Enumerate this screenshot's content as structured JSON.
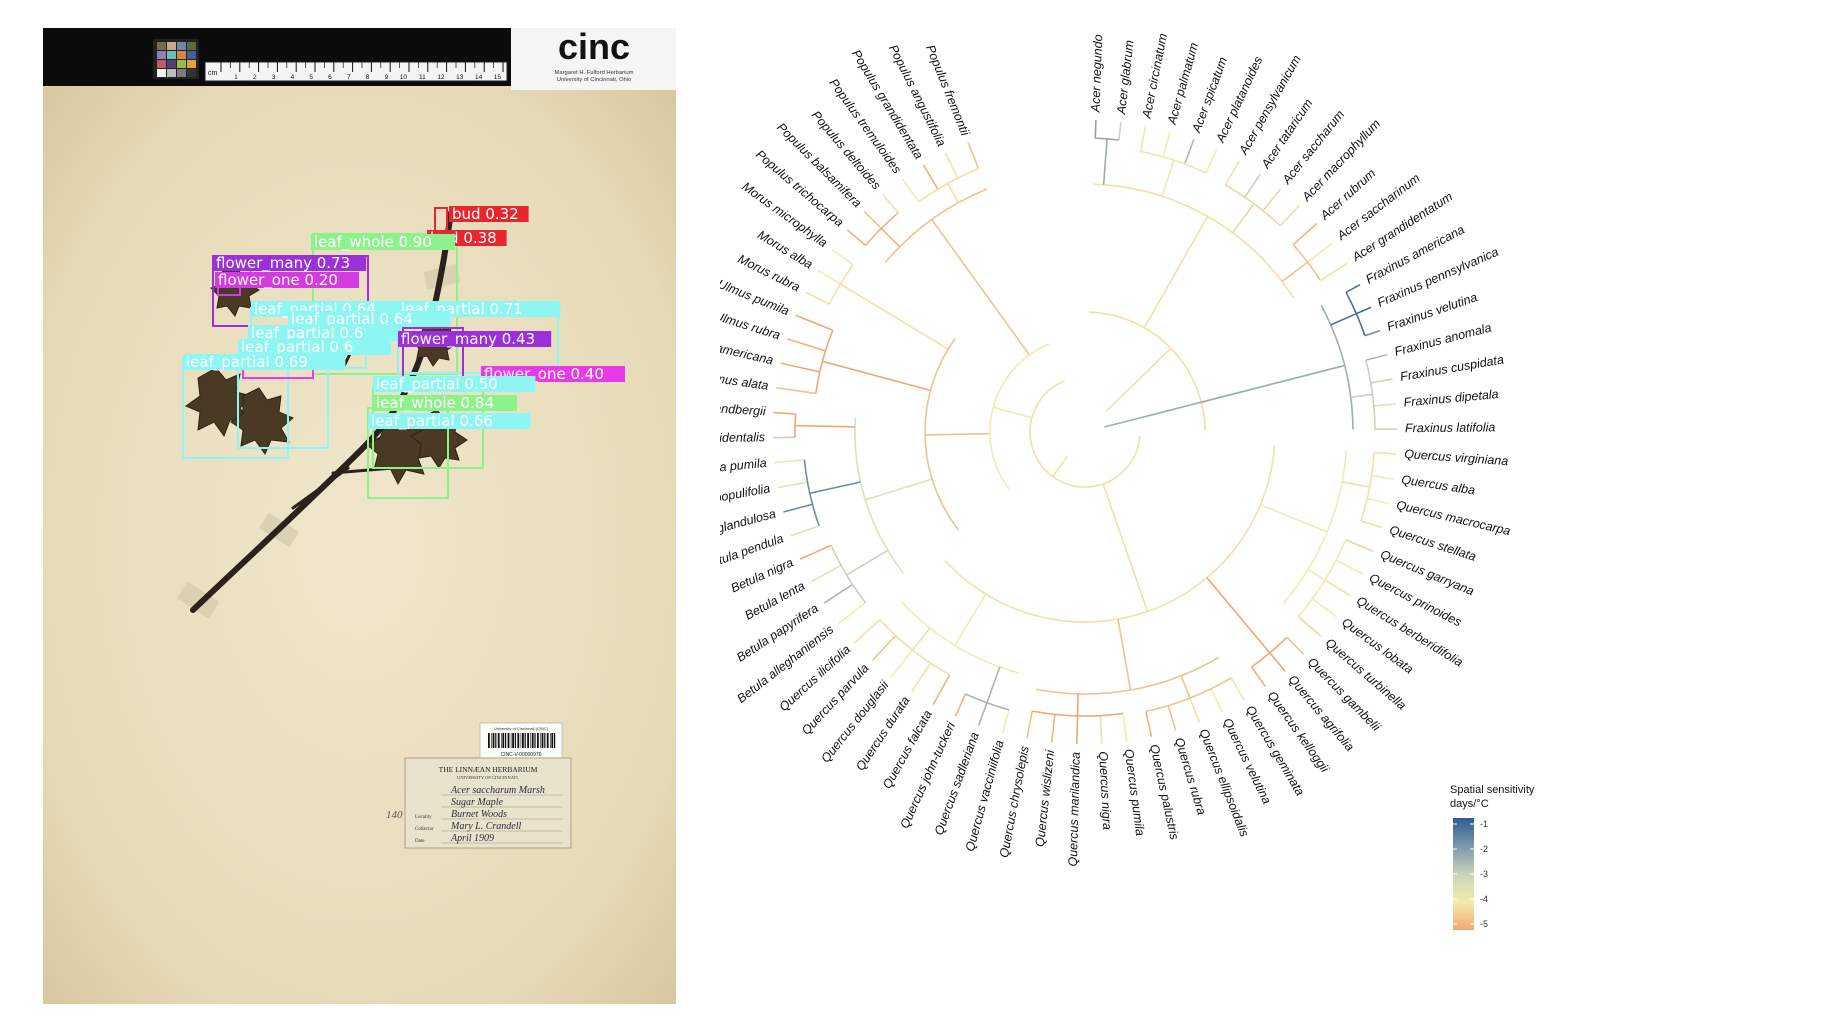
{
  "specimen": {
    "logo": "cinc",
    "institution_line1": "Margaret H. Fulford Herbarium",
    "institution_line2": "University of Cincinnati, Ohio",
    "ruler_label": "cm",
    "ruler_numbers": [
      "1",
      "2",
      "3",
      "4",
      "5",
      "6",
      "7",
      "8",
      "9",
      "10",
      "11",
      "12",
      "13",
      "14",
      "15"
    ],
    "barcode_top": "University of Cincinnati (CINC)",
    "barcode_id": "CINC-V-00000976",
    "label_title": "THE LINNÆAN HERBARIUM",
    "label_subtitle": "UNIVERSITY OF CINCINNATI.",
    "label_fields": [
      {
        "key": "",
        "value": "Acer saccharum Marsh"
      },
      {
        "key": "",
        "value": "Sugar Maple"
      },
      {
        "key": "Locality",
        "value": "Burnet Woods"
      },
      {
        "key": "Collector",
        "value": "Mary L. Crandell"
      },
      {
        "key": "Date",
        "value": "April 1909"
      }
    ],
    "margin_note": "140",
    "detections": [
      {
        "label": "bud 0.32",
        "color": "#e8262d"
      },
      {
        "label": "bud 0.38",
        "color": "#e8262d"
      },
      {
        "label": "leaf_whole 0.90",
        "color": "#8cf38c"
      },
      {
        "label": "flower_many 0.73",
        "color": "#9b2fd8"
      },
      {
        "label": "flower_one 0.20",
        "color": "#d33ae0"
      },
      {
        "label": "leaf_partial 0.64",
        "color": "#8ef6f2"
      },
      {
        "label": "leaf_partial 0.71",
        "color": "#8ef6f2"
      },
      {
        "label": "leaf_partial 0.64",
        "color": "#8ef6f2"
      },
      {
        "label": "leaf_partial 0.6",
        "color": "#8ef6f2"
      },
      {
        "label": "flower_many 0.43",
        "color": "#9b2fd8"
      },
      {
        "label": "leaf_partial 0.6",
        "color": "#8ef6f2"
      },
      {
        "label": "leaf_partial 0.69",
        "color": "#8ef6f2"
      },
      {
        "label": "flower_one 0.40",
        "color": "#e63be6"
      },
      {
        "label": "leaf_partial 0.50",
        "color": "#8ef6f2"
      },
      {
        "label": "leaf_whole 0.84",
        "color": "#8cf38c"
      },
      {
        "label": "leaf_partial 0.66",
        "color": "#8ef6f2"
      }
    ]
  },
  "tree": {
    "legend_title": "Spatial sensitivity",
    "legend_unit": "days/°C",
    "legend_ticks": [
      "-1",
      "-2",
      "-3",
      "-4",
      "-5"
    ],
    "legend_colors": [
      "#2e5b95",
      "#7d97aa",
      "#c9d3bb",
      "#f3ebad",
      "#f2a772"
    ],
    "tips": [
      {
        "name": "Acer negundo",
        "color": "#8ea0a8"
      },
      {
        "name": "Acer glabrum",
        "color": "#c9d3bb"
      },
      {
        "name": "Acer circinatum",
        "color": "#e8e7b4"
      },
      {
        "name": "Acer palmatum",
        "color": "#f3ebad"
      },
      {
        "name": "Acer spicatum",
        "color": "#a9b7b0"
      },
      {
        "name": "Acer platanoides",
        "color": "#f3ebad"
      },
      {
        "name": "Acer pensylvanicum",
        "color": "#f0e2a8"
      },
      {
        "name": "Acer tataricum",
        "color": "#c9d3bb"
      },
      {
        "name": "Acer saccharum",
        "color": "#f2d29b"
      },
      {
        "name": "Acer macrophyllum",
        "color": "#f5dfa5"
      },
      {
        "name": "Acer rubrum",
        "color": "#f2b27c"
      },
      {
        "name": "Acer saccharinum",
        "color": "#f3ebad"
      },
      {
        "name": "Acer grandidentatum",
        "color": "#f5dfa5"
      },
      {
        "name": "Fraxinus americana",
        "color": "#4a6fa0"
      },
      {
        "name": "Fraxinus pennsylvanica",
        "color": "#3a62a0"
      },
      {
        "name": "Fraxinus velutina",
        "color": "#6f8dab"
      },
      {
        "name": "Fraxinus anomala",
        "color": "#a9bbb4"
      },
      {
        "name": "Fraxinus cuspidata",
        "color": "#c9d3bb"
      },
      {
        "name": "Fraxinus dipetala",
        "color": "#dde2b5"
      },
      {
        "name": "Fraxinus latifolia",
        "color": "#c9d3bb"
      },
      {
        "name": "Quercus virginiana",
        "color": "#f5dfa5"
      },
      {
        "name": "Quercus alba",
        "color": "#f3ebad"
      },
      {
        "name": "Quercus macrocarpa",
        "color": "#f3ebad"
      },
      {
        "name": "Quercus stellata",
        "color": "#f5dfa5"
      },
      {
        "name": "Quercus garryana",
        "color": "#f2d29b"
      },
      {
        "name": "Quercus prinoides",
        "color": "#f3ebad"
      },
      {
        "name": "Quercus berberidifolia",
        "color": "#f5dfa5"
      },
      {
        "name": "Quercus lobata",
        "color": "#f3ebad"
      },
      {
        "name": "Quercus turbinella",
        "color": "#f2d29b"
      },
      {
        "name": "Quercus gambelii",
        "color": "#f2c28b"
      },
      {
        "name": "Quercus agrifolia",
        "color": "#f2a772"
      },
      {
        "name": "Quercus kelloggii",
        "color": "#f2b27c"
      },
      {
        "name": "Quercus geminata",
        "color": "#e8e7b4"
      },
      {
        "name": "Quercus velutina",
        "color": "#f3ebad"
      },
      {
        "name": "Quercus ellipsoidalis",
        "color": "#f5dfa5"
      },
      {
        "name": "Quercus rubra",
        "color": "#f2c28b"
      },
      {
        "name": "Quercus palustris",
        "color": "#f2b27c"
      },
      {
        "name": "Quercus pumila",
        "color": "#f3ebad"
      },
      {
        "name": "Quercus nigra",
        "color": "#f5dfa5"
      },
      {
        "name": "Quercus marilandica",
        "color": "#f2a772"
      },
      {
        "name": "Quercus wislizeni",
        "color": "#f2b27c"
      },
      {
        "name": "Quercus chrysolepis",
        "color": "#f2c28b"
      },
      {
        "name": "Quercus vacciniifolia",
        "color": "#f3ebad"
      },
      {
        "name": "Quercus sadleriana",
        "color": "#a9b7b0"
      },
      {
        "name": "Quercus john-tuckeri",
        "color": "#f2b27c"
      },
      {
        "name": "Quercus falcata",
        "color": "#f2b27c"
      },
      {
        "name": "Quercus durata",
        "color": "#f5dfa5"
      },
      {
        "name": "Quercus douglasii",
        "color": "#f3ebad"
      },
      {
        "name": "Quercus parvula",
        "color": "#f2c28b"
      },
      {
        "name": "Quercus ilicifolia",
        "color": "#f5dfa5"
      },
      {
        "name": "Betula alleghaniensis",
        "color": "#f3ebad"
      },
      {
        "name": "Betula papyrifera",
        "color": "#a9b7b0"
      },
      {
        "name": "Betula lenta",
        "color": "#dde2b5"
      },
      {
        "name": "Betula nigra",
        "color": "#f2a772"
      },
      {
        "name": "Betula pendula",
        "color": "#dde2b5"
      },
      {
        "name": "Betula glandulosa",
        "color": "#6f8dab"
      },
      {
        "name": "Betula populifolia",
        "color": "#dde2b5"
      },
      {
        "name": "Betula pumila",
        "color": "#e8e7b4"
      },
      {
        "name": "Betula occidentalis",
        "color": "#c9d3bb"
      },
      {
        "name": "Betula sandbergii",
        "color": "#f2a772"
      },
      {
        "name": "Ulmus alata",
        "color": "#f2c28b"
      },
      {
        "name": "Ulmus americana",
        "color": "#f2a772"
      },
      {
        "name": "Ulmus rubra",
        "color": "#f2b27c"
      },
      {
        "name": "Ulmus pumila",
        "color": "#f2a772"
      },
      {
        "name": "Morus rubra",
        "color": "#f5dfa5"
      },
      {
        "name": "Morus alba",
        "color": "#f3ebad"
      },
      {
        "name": "Morus microphylla",
        "color": "#f3ebad"
      },
      {
        "name": "Populus trichocarpa",
        "color": "#f2b27c"
      },
      {
        "name": "Populus balsamifera",
        "color": "#f2c28b"
      },
      {
        "name": "Populus deltoides",
        "color": "#f5dfa5"
      },
      {
        "name": "Populus tremuloides",
        "color": "#f3ebad"
      },
      {
        "name": "Populus grandidentata",
        "color": "#f2b27c"
      },
      {
        "name": "Populus angustifolia",
        "color": "#f5dfa5"
      },
      {
        "name": "Populus fremontii",
        "color": "#f2c28b"
      }
    ]
  }
}
